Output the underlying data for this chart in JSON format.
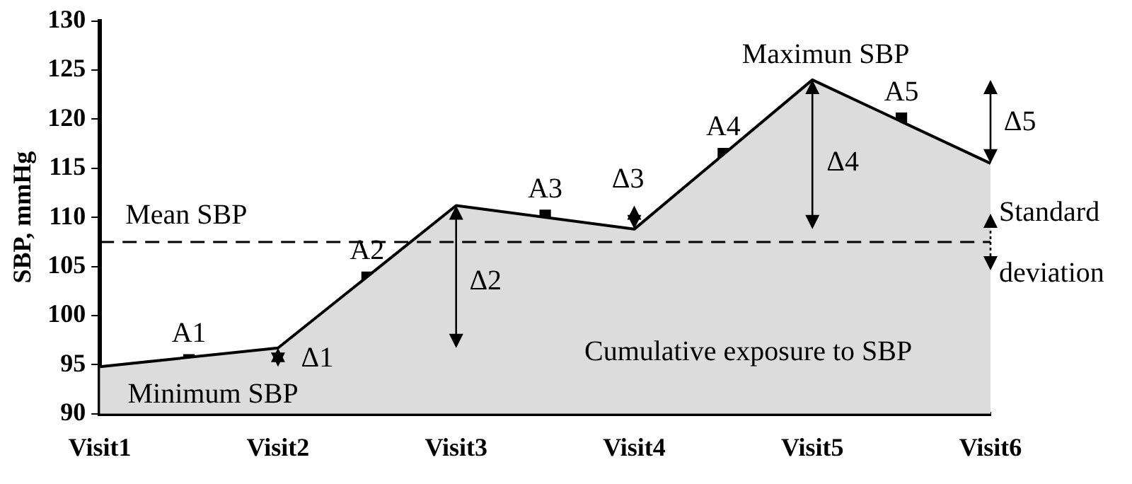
{
  "chart_data": {
    "type": "area",
    "ylabel": "SBP, mmHg",
    "categories": [
      "Visit1",
      null,
      "Visit2",
      null,
      "Visit3",
      null,
      "Visit4",
      null,
      "Visit5",
      null,
      "Visit6"
    ],
    "ylim": [
      90,
      130
    ],
    "yticks": [
      90,
      95,
      100,
      105,
      110,
      115,
      120,
      125,
      130
    ],
    "grid": false,
    "legend": false,
    "series": [
      {
        "color": "#dcdcdc",
        "values": [
          94.8,
          null,
          96.7,
          null,
          111.2,
          null,
          108.8,
          null,
          124,
          null,
          115.5
        ]
      },
      {
        "type": "scatter",
        "color": "#000000",
        "marker": "square",
        "values": [
          null,
          95.5,
          null,
          103.9,
          null,
          110.2,
          null,
          116.5,
          null,
          120.1,
          null
        ],
        "value_labels": [
          null,
          "A1",
          null,
          "A2",
          null,
          "A3",
          null,
          "A4",
          null,
          "A5",
          null
        ]
      }
    ],
    "ref_lines": [
      {
        "axis": "y",
        "value": 107.5,
        "label": "Mean SBP",
        "line_style": "dashed",
        "color": "#000000"
      }
    ],
    "annotations": [
      "Δ1",
      "Δ2",
      "Δ3",
      "Δ4",
      "Δ5",
      "Maximun SBP",
      "Minimum SBP",
      "Cumulative exposure to SBP",
      "Standard deviation"
    ]
  }
}
